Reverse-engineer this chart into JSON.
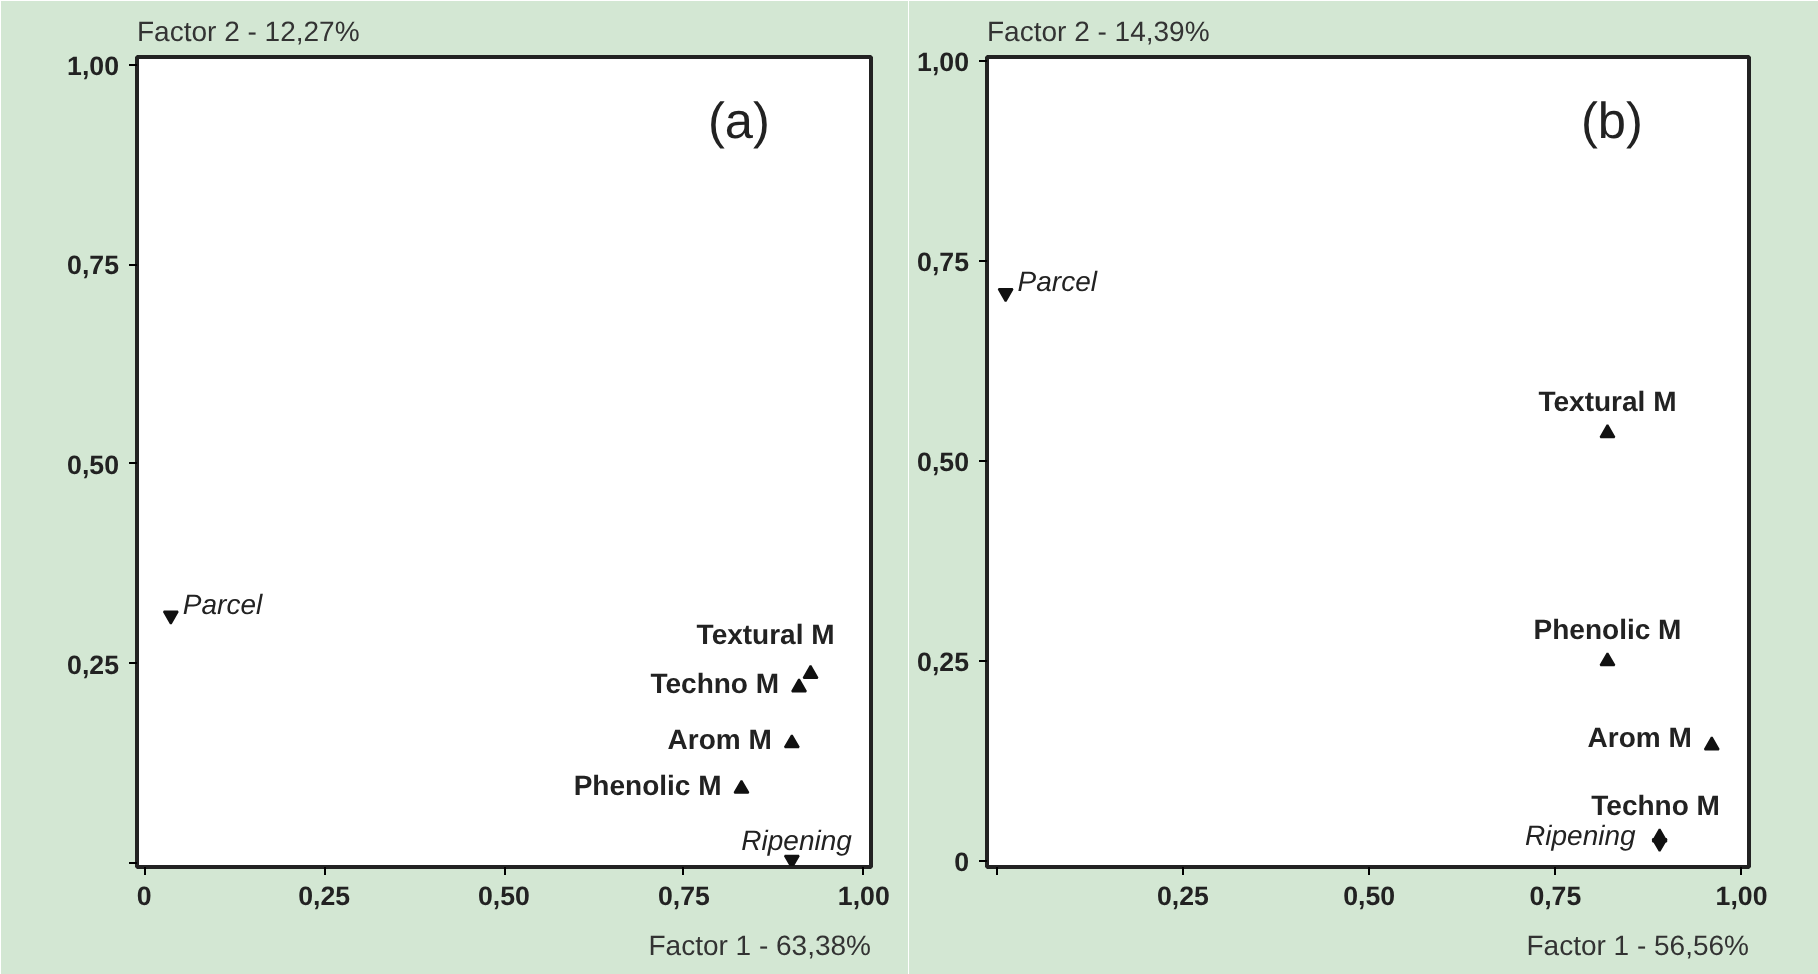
{
  "chart_data": [
    {
      "type": "scatter",
      "xlabel": "Factor 1 - 63,38%",
      "ylabel": "Factor 2 - 12,27%",
      "xlim": [
        -0.01,
        1.01
      ],
      "ylim": [
        -0.005,
        1.01
      ],
      "xticks": [
        0,
        {
          "value": 0.25,
          "label": "0,25"
        },
        {
          "value": 0.5,
          "label": "0,50"
        },
        {
          "value": 0.75,
          "label": "0,75"
        },
        {
          "value": 1,
          "label": "1,00"
        }
      ],
      "yticks": [
        {
          "value": 0,
          "label": null
        },
        {
          "value": 0.25,
          "label": "0,25"
        },
        {
          "value": 0.5,
          "label": "0,50"
        },
        {
          "value": 0.75,
          "label": "0,75"
        },
        {
          "value": 1,
          "label": "1,00"
        }
      ],
      "grid": false,
      "series": [
        {
          "color": "#111111",
          "marker": "triangle",
          "x": [
            0.926,
            0.91,
            0.9,
            0.83
          ],
          "values": [
            0.237,
            0.22,
            0.15,
            0.093
          ]
        },
        {
          "color": "#111111",
          "marker": "triangle",
          "x": [
            0.037,
            0.9
          ],
          "values": [
            0.31,
            0.004
          ]
        }
      ],
      "annotations": [
        "(a)",
        {
          "text": "Textural M",
          "x": 0.926,
          "y": 0.237
        },
        {
          "text": "Techno M",
          "x": 0.91,
          "y": 0.22
        },
        {
          "text": "Arom M",
          "x": 0.9,
          "y": 0.15
        },
        {
          "text": "Phenolic M",
          "x": 0.83,
          "y": 0.093
        },
        {
          "text": "Parcel",
          "x": 0.037,
          "y": 0.31
        },
        {
          "text": "Ripening",
          "x": 0.9,
          "y": 0.004
        }
      ]
    },
    {
      "type": "scatter",
      "xlabel": "Factor 1 - 56,56%",
      "ylabel": "Factor 2 - 14,39%",
      "xlim": [
        -0.013,
        1.01
      ],
      "ylim": [
        -0.007,
        1.005
      ],
      "xticks": [
        {
          "value": 0,
          "label": null
        },
        {
          "value": 0.25,
          "label": "0,25"
        },
        {
          "value": 0.5,
          "label": "0,50"
        },
        {
          "value": 0.75,
          "label": "0,75"
        },
        {
          "value": 1,
          "label": "1,00"
        }
      ],
      "yticks": [
        0,
        {
          "value": 0.25,
          "label": "0,25"
        },
        {
          "value": 0.5,
          "label": "0,50"
        },
        {
          "value": 0.75,
          "label": "0,75"
        },
        {
          "value": 1,
          "label": "1,00"
        }
      ],
      "grid": false,
      "series": [
        {
          "color": "#111111",
          "marker": "triangle",
          "x": [
            0.82,
            0.82,
            0.96,
            0.89
          ],
          "values": [
            0.535,
            0.25,
            0.145,
            0.03
          ]
        },
        {
          "color": "#111111",
          "marker": "triangle",
          "x": [
            0.012,
            0.89
          ],
          "values": [
            0.71,
            0.023
          ]
        }
      ],
      "annotations": [
        "(b)",
        {
          "text": "Textural M",
          "x": 0.82,
          "y": 0.535
        },
        {
          "text": "Phenolic M",
          "x": 0.82,
          "y": 0.25
        },
        {
          "text": "Arom M",
          "x": 0.96,
          "y": 0.145
        },
        {
          "text": "Techno M",
          "x": 0.89,
          "y": 0.03
        },
        {
          "text": "Parcel",
          "x": 0.012,
          "y": 0.71
        },
        {
          "text": "Ripening",
          "x": 0.89,
          "y": 0.023
        }
      ]
    }
  ]
}
